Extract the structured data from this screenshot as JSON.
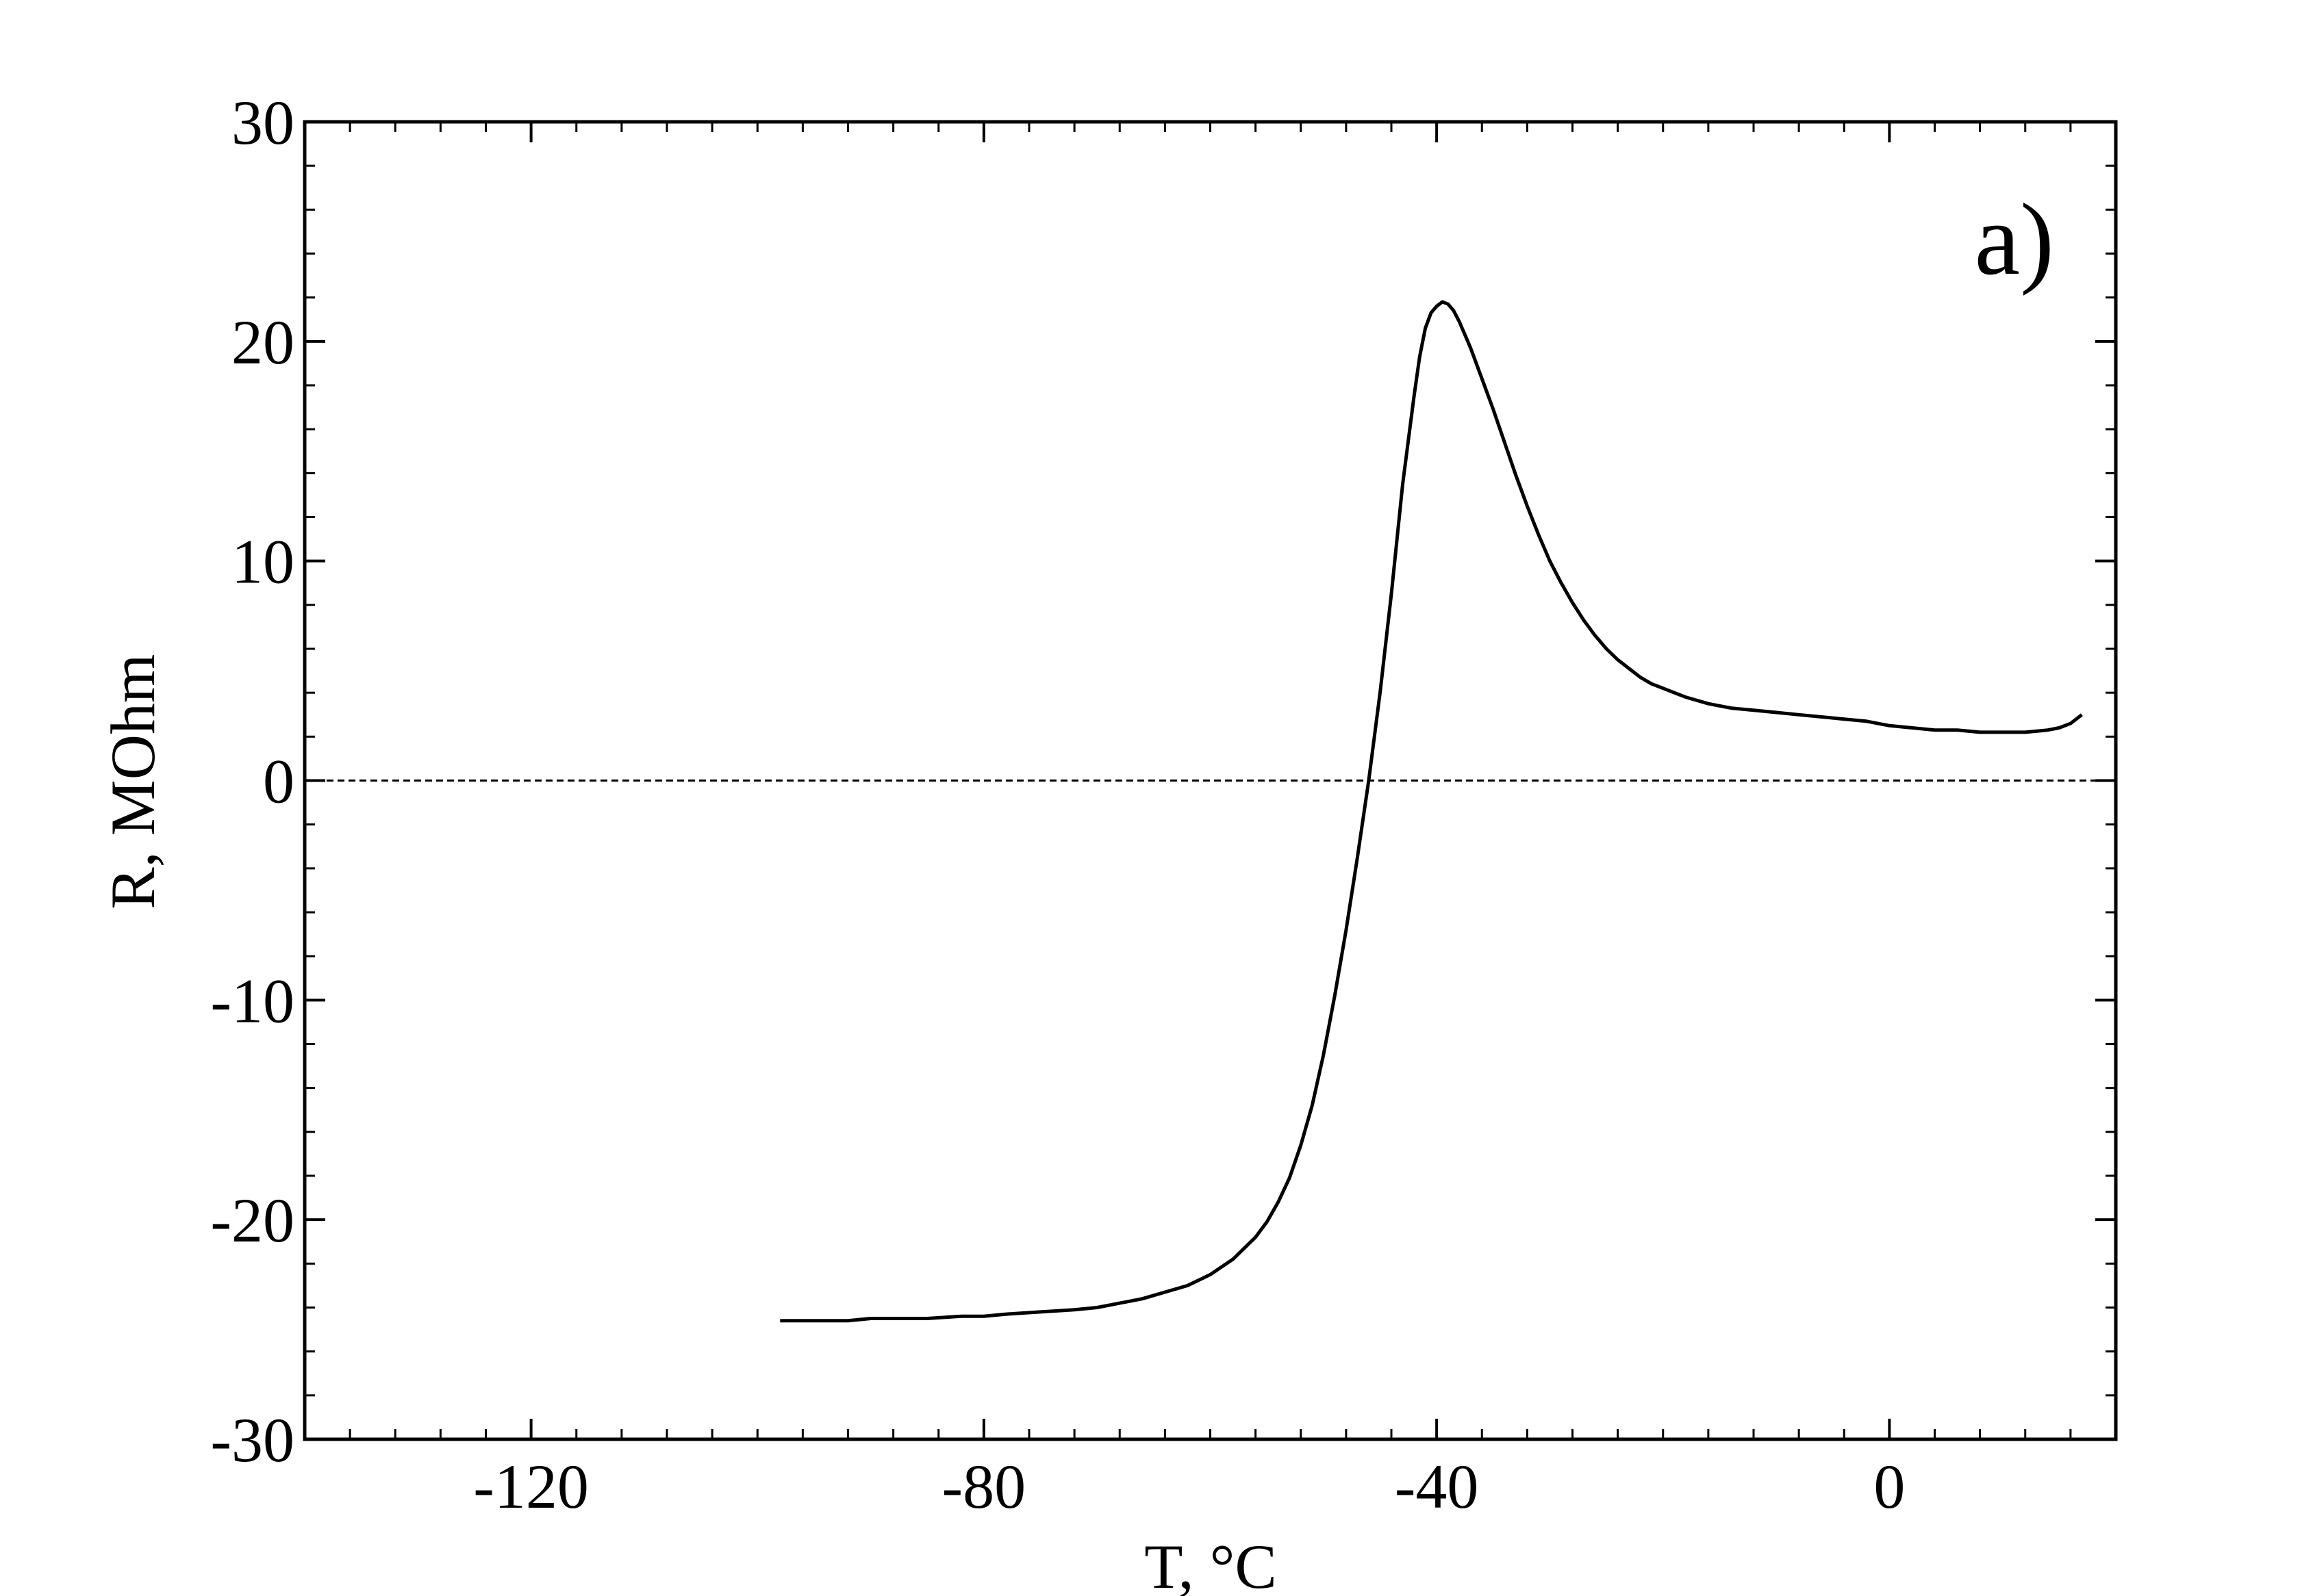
{
  "chart_data": {
    "type": "line",
    "title": "",
    "panel_label": "a)",
    "xlabel": "T, °C",
    "ylabel": "R, MOhm",
    "xlim": [
      -140,
      20
    ],
    "ylim": [
      -30,
      30
    ],
    "x_ticks": [
      -120,
      -80,
      -40,
      0
    ],
    "x_tick_labels": [
      "-120",
      "-80",
      "-40",
      "0"
    ],
    "y_ticks": [
      -30,
      -20,
      -10,
      0,
      10,
      20,
      30
    ],
    "y_tick_labels": [
      "-30",
      "-20",
      "-10",
      "0",
      "10",
      "20",
      "30"
    ],
    "x_minor_step": 4,
    "y_minor_step": 2,
    "reference_line": {
      "y": 0,
      "style": "dashed"
    },
    "grid": false,
    "legend": "none",
    "series": [
      {
        "x": [
          -98,
          -95,
          -92,
          -90,
          -88,
          -85,
          -82,
          -80,
          -78,
          -75,
          -72,
          -70,
          -68,
          -66,
          -64,
          -62,
          -60,
          -58,
          -56,
          -55,
          -54,
          -53,
          -52,
          -51,
          -50,
          -49,
          -48,
          -47,
          -46,
          -45,
          -44,
          -43,
          -42,
          -41.5,
          -41,
          -40.5,
          -40,
          -39.5,
          -39,
          -38.5,
          -38,
          -37.5,
          -37,
          -36,
          -35,
          -34,
          -33,
          -32,
          -31,
          -30,
          -29,
          -28,
          -27,
          -26,
          -25,
          -24,
          -23,
          -22,
          -21,
          -20,
          -19,
          -18,
          -16,
          -14,
          -12,
          -10,
          -8,
          -6,
          -4,
          -2,
          0,
          2,
          4,
          6,
          8,
          10,
          12,
          14,
          15,
          16,
          17
        ],
        "y": [
          -24.6,
          -24.6,
          -24.6,
          -24.5,
          -24.5,
          -24.5,
          -24.4,
          -24.4,
          -24.3,
          -24.2,
          -24.1,
          -24.0,
          -23.8,
          -23.6,
          -23.3,
          -23.0,
          -22.5,
          -21.8,
          -20.8,
          -20.1,
          -19.2,
          -18.1,
          -16.6,
          -14.8,
          -12.5,
          -9.8,
          -6.8,
          -3.5,
          0.0,
          4.0,
          8.5,
          13.5,
          17.5,
          19.3,
          20.6,
          21.3,
          21.6,
          21.8,
          21.7,
          21.4,
          20.9,
          20.3,
          19.7,
          18.3,
          16.9,
          15.4,
          13.9,
          12.5,
          11.2,
          10.0,
          9.0,
          8.1,
          7.3,
          6.6,
          6.0,
          5.5,
          5.1,
          4.7,
          4.4,
          4.2,
          4.0,
          3.8,
          3.5,
          3.3,
          3.2,
          3.1,
          3.0,
          2.9,
          2.8,
          2.7,
          2.5,
          2.4,
          2.3,
          2.3,
          2.2,
          2.2,
          2.2,
          2.3,
          2.4,
          2.6,
          3.0
        ]
      }
    ]
  }
}
